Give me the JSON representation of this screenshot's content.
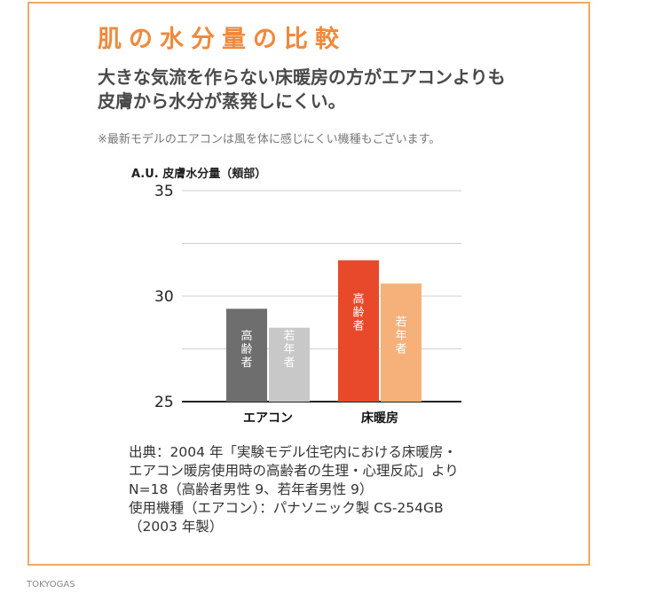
{
  "title": "肌の水分量の比較",
  "lead": [
    "大きな気流を作らない床暖房の方がエアコンよりも",
    "皮膚から水分が蒸発しにくい。"
  ],
  "note": "※最新モデルのエアコンは風を体に感じにくい機種もございます。",
  "chart_data": {
    "type": "bar",
    "ylabel": "A.U. 皮膚水分量（頬部）",
    "ylim": [
      25,
      35
    ],
    "yticks": [
      25,
      30,
      35
    ],
    "grid": true,
    "categories": [
      "エアコン",
      "床暖房"
    ],
    "series": [
      {
        "name": "高齢者",
        "values": [
          29.4,
          31.7
        ],
        "colors": [
          "#6e6e6e",
          "#e8492a"
        ]
      },
      {
        "name": "若年者",
        "values": [
          28.5,
          30.6
        ],
        "colors": [
          "#c8c8c8",
          "#f6b07a"
        ]
      }
    ]
  },
  "source": [
    "出典：2004 年「実験モデル住宅内における床暖房・",
    "エアコン暖房使用時の高齢者の生理・心理反応」より",
    "N=18（高齢者男性 9、若年者男性 9）",
    "使用機種（エアコン）：パナソニック製 CS-254GB",
    "（2003 年製）"
  ],
  "credit": "TOKYOGAS"
}
